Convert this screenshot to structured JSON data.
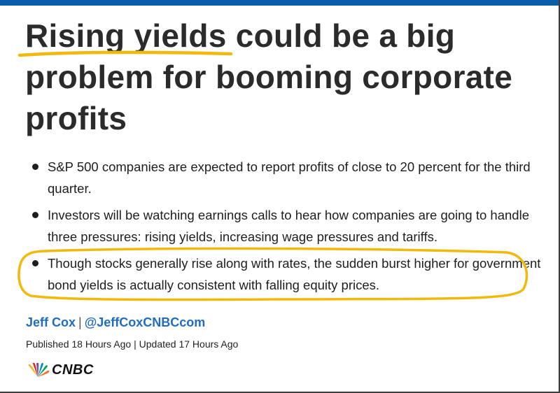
{
  "article": {
    "headline_underlined": "Rising yields",
    "headline_rest": " could be a big problem for booming corporate profits",
    "bullets": [
      "S&P 500 companies are expected to report profits of close to 20 percent for the third quarter.",
      "Investors will be watching earnings calls to hear how companies are going to handle three pressures: rising yields, increasing wage pressures and tariffs.",
      "Though stocks generally rise along with rates, the sudden burst higher for government bond yields is actually consistent with falling equity prices."
    ],
    "author": "Jeff Cox",
    "byline_separator": "|",
    "handle": "@JeffCoxCNBCcom",
    "published": "Published 18 Hours Ago",
    "dates_separator": "|",
    "updated": "Updated 17 Hours Ago"
  },
  "brand": {
    "logo_text": "CNBC",
    "logo_icon": "nbc-peacock-icon"
  },
  "colors": {
    "top_bar": "#0a5da8",
    "annotation_yellow": "#f2b90c",
    "link_blue": "#1f6cc1",
    "text": "#2b2b2b"
  }
}
